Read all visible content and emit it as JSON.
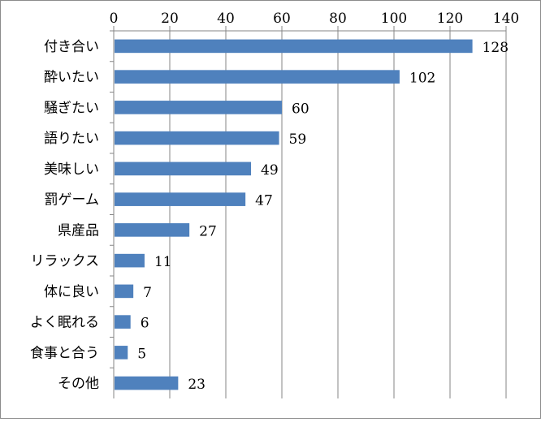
{
  "chart_data": {
    "type": "bar",
    "orientation": "horizontal",
    "categories": [
      "付き合い",
      "酔いたい",
      "騒ぎたい",
      "語りたい",
      "美味しい",
      "罰ゲーム",
      "県産品",
      "リラックス",
      "体に良い",
      "よく眠れる",
      "食事と合う",
      "その他"
    ],
    "values": [
      128,
      102,
      60,
      59,
      49,
      47,
      27,
      11,
      7,
      6,
      5,
      23
    ],
    "data_labels": [
      "128",
      "102",
      "60",
      "59",
      "49",
      "47",
      "27",
      "11",
      "7",
      "6",
      "5",
      "23"
    ],
    "xlim": [
      0,
      140
    ],
    "x_ticks": [
      0,
      20,
      40,
      60,
      80,
      100,
      120,
      140
    ],
    "x_tick_labels": [
      "0",
      "20",
      "40",
      "60",
      "80",
      "100",
      "120",
      "140"
    ],
    "x_axis_position": "top",
    "grid": true,
    "legend": "none",
    "bar_color": "#4f81bd",
    "grid_color": "#868686"
  }
}
